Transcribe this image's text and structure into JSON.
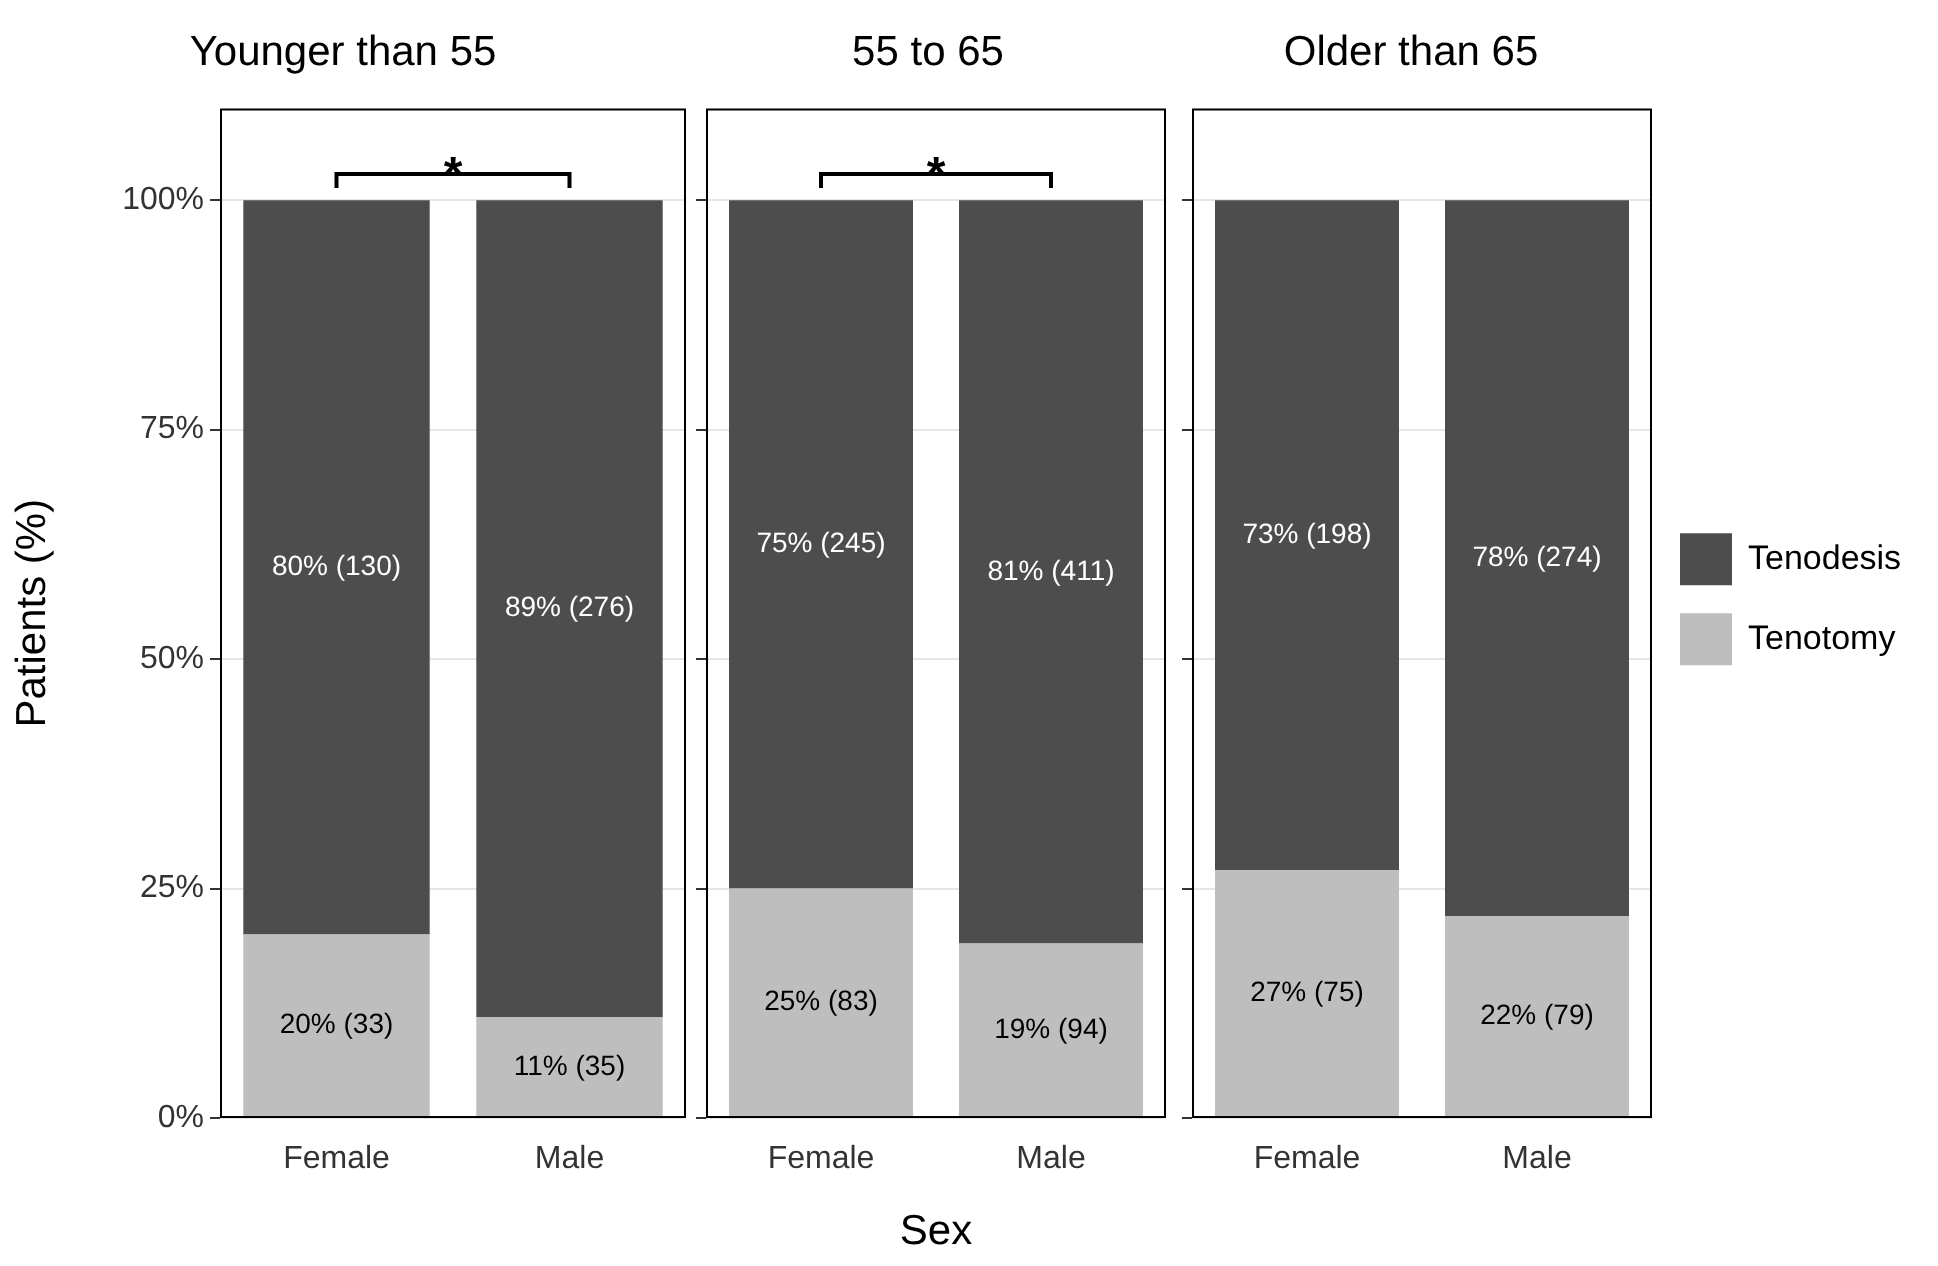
{
  "chart_data": [
    {
      "type": "bar",
      "stacked": true,
      "title": "Younger than 55",
      "categories": [
        "Female",
        "Male"
      ],
      "ylabel": "Patients (%)",
      "ylim": [
        0,
        110
      ],
      "yticks": [
        {
          "value": 0,
          "label": "0%"
        },
        {
          "value": 25,
          "label": "25%"
        },
        {
          "value": 50,
          "label": "50%"
        },
        {
          "value": 75,
          "label": "75%"
        },
        {
          "value": 100,
          "label": "100%"
        }
      ],
      "grid": "y",
      "annotations": [
        "*"
      ],
      "series": [
        {
          "color": "#bebebe",
          "values": [
            20,
            11
          ],
          "value_labels": [
            "20% (33)",
            "11% (35)"
          ]
        },
        {
          "color": "#4d4d4d",
          "values": [
            80,
            89
          ],
          "value_labels": [
            "80% (130)",
            "89% (276)"
          ]
        }
      ]
    },
    {
      "type": "bar",
      "stacked": true,
      "title": "55 to 65",
      "categories": [
        "Female",
        "Male"
      ],
      "xlabel": "Sex",
      "ylim": [
        0,
        110
      ],
      "yticks": [
        {
          "value": 0,
          "label": null
        },
        {
          "value": 25,
          "label": null
        },
        {
          "value": 50,
          "label": null
        },
        {
          "value": 75,
          "label": null
        },
        {
          "value": 100,
          "label": null
        }
      ],
      "grid": "y",
      "tick_labels": "x",
      "annotations": [
        "*"
      ],
      "series": [
        {
          "color": "#bebebe",
          "values": [
            25,
            19
          ],
          "value_labels": [
            "25% (83)",
            "19% (94)"
          ]
        },
        {
          "color": "#4d4d4d",
          "values": [
            75,
            81
          ],
          "value_labels": [
            "75% (245)",
            "81% (411)"
          ]
        }
      ]
    },
    {
      "type": "bar",
      "stacked": true,
      "title": "Older than 65",
      "categories": [
        "Female",
        "Male"
      ],
      "ylim": [
        0,
        110
      ],
      "yticks": [
        {
          "value": 0,
          "label": null
        },
        {
          "value": 25,
          "label": null
        },
        {
          "value": 50,
          "label": null
        },
        {
          "value": 75,
          "label": null
        },
        {
          "value": 100,
          "label": null
        }
      ],
      "grid": "y",
      "tick_labels": "x",
      "legend": "right",
      "series": [
        {
          "name": "Tenotomy",
          "color": "#bebebe",
          "values": [
            27,
            22
          ],
          "value_labels": [
            "27% (75)",
            "22% (79)"
          ]
        },
        {
          "name": "Tenodesis",
          "color": "#4d4d4d",
          "values": [
            73,
            78
          ],
          "value_labels": [
            "73% (198)",
            "78% (274)"
          ]
        }
      ]
    }
  ]
}
